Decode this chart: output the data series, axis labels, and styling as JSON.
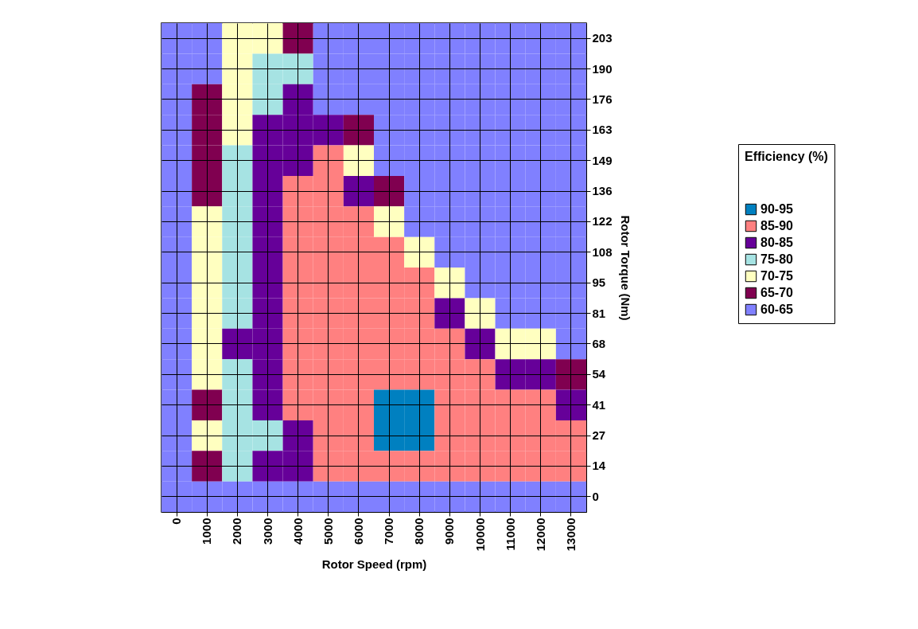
{
  "chart_data": {
    "type": "heatmap",
    "xlabel": "Rotor Speed (rpm)",
    "ylabel": "Rotor Torque (Nm)",
    "legend_title": "Efficiency (%)",
    "grid": true,
    "categories": [
      "0",
      "1000",
      "2000",
      "3000",
      "4000",
      "5000",
      "6000",
      "7000",
      "8000",
      "9000",
      "10000",
      "11000",
      "12000",
      "13000"
    ],
    "y_categories": [
      "203",
      "190",
      "176",
      "163",
      "149",
      "136",
      "122",
      "108",
      "95",
      "81",
      "68",
      "54",
      "41",
      "27",
      "14",
      "0"
    ],
    "cells": [
      [
        62.5,
        62.5,
        72.5,
        72.5,
        67.5,
        62.5,
        62.5,
        62.5,
        62.5,
        62.5,
        62.5,
        62.5,
        62.5,
        62.5
      ],
      [
        62.5,
        62.5,
        72.5,
        77.5,
        77.5,
        62.5,
        62.5,
        62.5,
        62.5,
        62.5,
        62.5,
        62.5,
        62.5,
        62.5
      ],
      [
        62.5,
        67.5,
        72.5,
        77.5,
        82.5,
        62.5,
        62.5,
        62.5,
        62.5,
        62.5,
        62.5,
        62.5,
        62.5,
        62.5
      ],
      [
        62.5,
        67.5,
        72.5,
        82.5,
        82.5,
        82.5,
        67.5,
        62.5,
        62.5,
        62.5,
        62.5,
        62.5,
        62.5,
        62.5
      ],
      [
        62.5,
        67.5,
        77.5,
        82.5,
        82.5,
        87.5,
        72.5,
        62.5,
        62.5,
        62.5,
        62.5,
        62.5,
        62.5,
        62.5
      ],
      [
        62.5,
        67.5,
        77.5,
        82.5,
        87.5,
        87.5,
        82.5,
        67.5,
        62.5,
        62.5,
        62.5,
        62.5,
        62.5,
        62.5
      ],
      [
        62.5,
        72.5,
        77.5,
        82.5,
        87.5,
        87.5,
        87.5,
        72.5,
        62.5,
        62.5,
        62.5,
        62.5,
        62.5,
        62.5
      ],
      [
        62.5,
        72.5,
        77.5,
        82.5,
        87.5,
        87.5,
        87.5,
        87.5,
        72.5,
        62.5,
        62.5,
        62.5,
        62.5,
        62.5
      ],
      [
        62.5,
        72.5,
        77.5,
        82.5,
        87.5,
        87.5,
        87.5,
        87.5,
        87.5,
        72.5,
        62.5,
        62.5,
        62.5,
        62.5
      ],
      [
        62.5,
        72.5,
        77.5,
        82.5,
        87.5,
        87.5,
        87.5,
        87.5,
        87.5,
        82.5,
        72.5,
        62.5,
        62.5,
        62.5
      ],
      [
        62.5,
        72.5,
        82.5,
        82.5,
        87.5,
        87.5,
        87.5,
        87.5,
        87.5,
        87.5,
        82.5,
        72.5,
        72.5,
        62.5
      ],
      [
        62.5,
        72.5,
        77.5,
        82.5,
        87.5,
        87.5,
        87.5,
        87.5,
        87.5,
        87.5,
        87.5,
        82.5,
        82.5,
        67.5
      ],
      [
        62.5,
        67.5,
        77.5,
        82.5,
        87.5,
        87.5,
        87.5,
        92.5,
        92.5,
        87.5,
        87.5,
        87.5,
        87.5,
        82.5
      ],
      [
        62.5,
        72.5,
        77.5,
        77.5,
        82.5,
        87.5,
        87.5,
        92.5,
        92.5,
        87.5,
        87.5,
        87.5,
        87.5,
        87.5
      ],
      [
        62.5,
        67.5,
        77.5,
        82.5,
        82.5,
        87.5,
        87.5,
        87.5,
        87.5,
        87.5,
        87.5,
        87.5,
        87.5,
        87.5
      ],
      [
        62.5,
        62.5,
        62.5,
        62.5,
        62.5,
        62.5,
        62.5,
        62.5,
        62.5,
        62.5,
        62.5,
        62.5,
        62.5,
        62.5
      ]
    ],
    "clim": [
      60,
      95
    ],
    "cticks": [
      {
        "value": 92.5,
        "label": "90-95"
      },
      {
        "value": 87.5,
        "label": "85-90"
      },
      {
        "value": 82.5,
        "label": "80-85"
      },
      {
        "value": 77.5,
        "label": "75-80"
      },
      {
        "value": 72.5,
        "label": "70-75"
      },
      {
        "value": 67.5,
        "label": "65-70"
      },
      {
        "value": 62.5,
        "label": "60-65"
      }
    ],
    "colors": [
      "#0080c0",
      "#ff8080",
      "#660099",
      "#a6e3e3",
      "#ffffc0",
      "#800050",
      "#8080ff"
    ]
  }
}
